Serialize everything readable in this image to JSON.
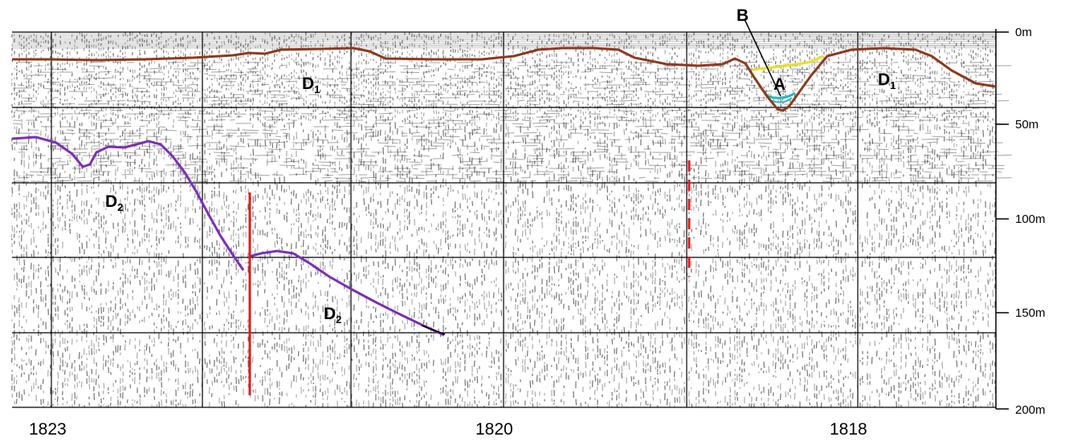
{
  "depth_axis": {
    "ticks": [
      "0m",
      "50m",
      "100m",
      "150m",
      "200m"
    ]
  },
  "shot_points": [
    "1823",
    "1820",
    "1818"
  ],
  "units": {
    "d1_left": {
      "main": "D",
      "sub": "1"
    },
    "d1_right": {
      "main": "D",
      "sub": "1"
    },
    "d2_upper": {
      "main": "D",
      "sub": "2"
    },
    "d2_lower": {
      "main": "D",
      "sub": "2"
    },
    "a": "A",
    "b": "B"
  },
  "colors": {
    "seafloor_horizon": "#8b3a1f",
    "d2_horizon": "#7b2fb5",
    "fill_b_top": "#e8e020",
    "fill_a": "#26b8c0",
    "fault": "#d42020",
    "grid": "#000000",
    "noise": "#333333"
  }
}
